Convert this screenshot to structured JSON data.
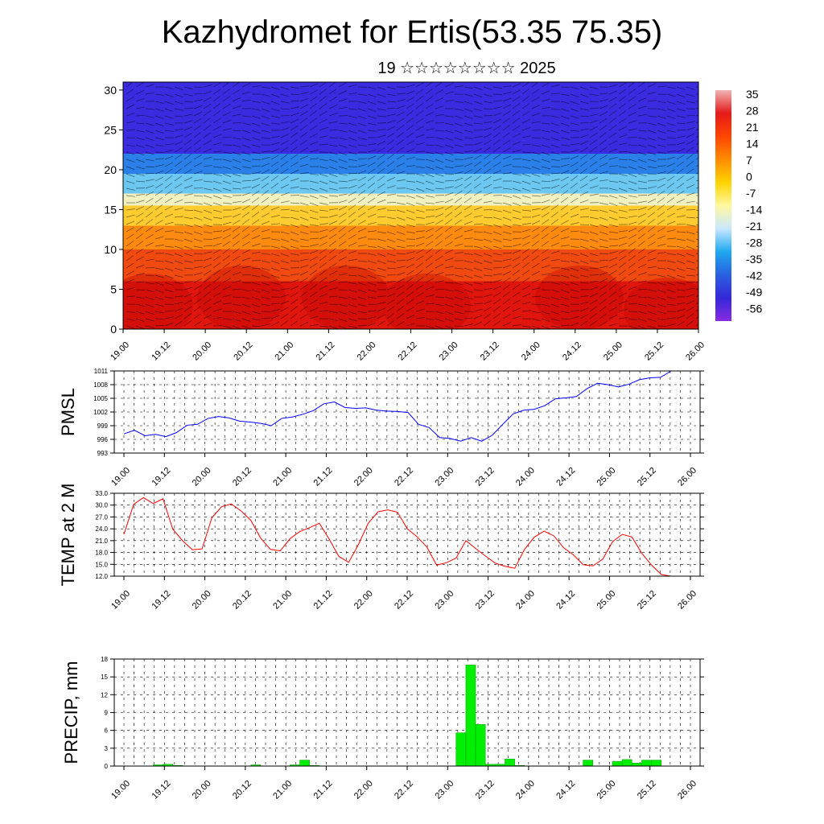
{
  "header": {
    "title": "Kazhydromet for Ertis(53.35 75.35)",
    "subtitle": "19 ☆☆☆☆☆☆☆☆ 2025"
  },
  "chart_data": [
    {
      "type": "heatmap",
      "title": "",
      "xlabel": "",
      "ylabel": "",
      "x_ticks": [
        "19.00",
        "19.12",
        "20.00",
        "20.12",
        "21.00",
        "21.12",
        "22.00",
        "22.12",
        "23.00",
        "23.12",
        "24.00",
        "24.12",
        "25.00",
        "25.12",
        "26.00"
      ],
      "y_ticks": [
        0,
        5,
        10,
        15,
        20,
        25,
        30
      ],
      "ylim": [
        0,
        31
      ],
      "colorbar": {
        "labels": [
          35,
          28,
          21,
          14,
          7,
          0,
          -7,
          -14,
          -21,
          -28,
          -35,
          -42,
          -49,
          -56
        ],
        "colors": [
          "#f2b4b4",
          "#e41a1a",
          "#ff4500",
          "#ff8c00",
          "#ffd400",
          "#fff8a0",
          "#c8e8ff",
          "#1ea8f0",
          "#2a60e0",
          "#3428d8",
          "#8a2be2"
        ]
      },
      "bands": [
        {
          "from": 0,
          "to": 6,
          "value": 21,
          "color": "#e0160e"
        },
        {
          "from": 6,
          "to": 10,
          "value": 14,
          "color": "#f04a10"
        },
        {
          "from": 10,
          "to": 13,
          "value": 7,
          "color": "#ff8a10"
        },
        {
          "from": 13,
          "to": 15.5,
          "value": 0,
          "color": "#ffcc30"
        },
        {
          "from": 15.5,
          "to": 17,
          "value": -14,
          "color": "#f0f0c0"
        },
        {
          "from": 17,
          "to": 19.5,
          "value": -21,
          "color": "#6cc8f0"
        },
        {
          "from": 19.5,
          "to": 22,
          "value": -35,
          "color": "#2a80e8"
        },
        {
          "from": 22,
          "to": 31,
          "value": -49,
          "color": "#3a2ae0"
        }
      ]
    },
    {
      "type": "line",
      "ylabel": "PMSL",
      "ylim": [
        993,
        1011
      ],
      "y_ticks": [
        993,
        996,
        999,
        1002,
        1005,
        1008,
        1011
      ],
      "x_ticks": [
        "19.00",
        "19.12",
        "20.00",
        "20.12",
        "21.00",
        "21.12",
        "22.00",
        "22.12",
        "23.00",
        "23.12",
        "24.00",
        "24.12",
        "25.00",
        "25.12",
        "26.00"
      ],
      "color": "#0000ff",
      "values": [
        997.2,
        998,
        996.8,
        997.1,
        996.6,
        997.5,
        999.1,
        999.3,
        1000.6,
        1001,
        1000.7,
        1000,
        999.8,
        999.5,
        999,
        1000.6,
        1000.9,
        1001.5,
        1002.3,
        1003.8,
        1004.2,
        1003,
        1002.8,
        1002.9,
        1002.4,
        1002.2,
        1002.1,
        1001.9,
        999.3,
        998.6,
        996.4,
        996.2,
        995.6,
        996.4,
        995.6,
        996.9,
        999.3,
        1001.6,
        1002.4,
        1002.6,
        1003.4,
        1004.9,
        1005.1,
        1005.4,
        1007.1,
        1008.3,
        1008,
        1007.5,
        1008.1,
        1009.1,
        1009.5,
        1009.6,
        1011
      ]
    },
    {
      "type": "line",
      "ylabel": "TEMP at 2 M",
      "ylim": [
        12,
        33
      ],
      "y_ticks": [
        "12.0",
        "15.0",
        "18.0",
        "21.0",
        "24.0",
        "27.0",
        "30.0",
        "33.0"
      ],
      "x_ticks": [
        "19.00",
        "19.12",
        "20.00",
        "20.12",
        "21.00",
        "21.12",
        "22.00",
        "22.12",
        "23.00",
        "23.12",
        "24.00",
        "24.12",
        "25.00",
        "25.12",
        "26.00"
      ],
      "color": "#ff0000",
      "values": [
        22.6,
        30.2,
        31.9,
        30.4,
        31.6,
        23.9,
        21,
        18.7,
        18.9,
        26.8,
        29.6,
        30.3,
        28.5,
        26.1,
        21.6,
        18.8,
        18.4,
        21.5,
        23.3,
        24.3,
        25.4,
        21.4,
        17,
        15.5,
        20,
        25.4,
        28.3,
        28.8,
        28.2,
        24,
        22,
        19.4,
        14.8,
        15.4,
        16.6,
        21,
        19,
        17.1,
        15.3,
        14.5,
        14,
        18.8,
        21.9,
        23.4,
        22.2,
        19.2,
        17.4,
        14.9,
        14.6,
        16.3,
        20.7,
        22.6,
        21.9,
        17.8,
        14.8,
        12.4,
        12
      ]
    },
    {
      "type": "bar",
      "ylabel": "PRECIP, mm",
      "ylim": [
        0,
        18
      ],
      "y_ticks": [
        0,
        3,
        6,
        9,
        12,
        15,
        18
      ],
      "x_ticks": [
        "19.00",
        "19.12",
        "20.00",
        "20.12",
        "21.00",
        "21.12",
        "22.00",
        "22.12",
        "23.00",
        "23.12",
        "24.00",
        "24.12",
        "25.00",
        "25.12",
        "26.00"
      ],
      "color": "#00ee00",
      "values": [
        0,
        0,
        0,
        0.2,
        0.3,
        0.1,
        0,
        0,
        0,
        0,
        0,
        0,
        0,
        0.2,
        0,
        0,
        0,
        0.2,
        1,
        0.1,
        0,
        0,
        0,
        0,
        0,
        0,
        0,
        0,
        0,
        0,
        0,
        0,
        0,
        0,
        5.6,
        17,
        7,
        0.3,
        0.3,
        1.2,
        0.1,
        0,
        0,
        0,
        0,
        0,
        0,
        1,
        0,
        0,
        0.8,
        1.1,
        0.5,
        1,
        1,
        0,
        0
      ]
    }
  ]
}
